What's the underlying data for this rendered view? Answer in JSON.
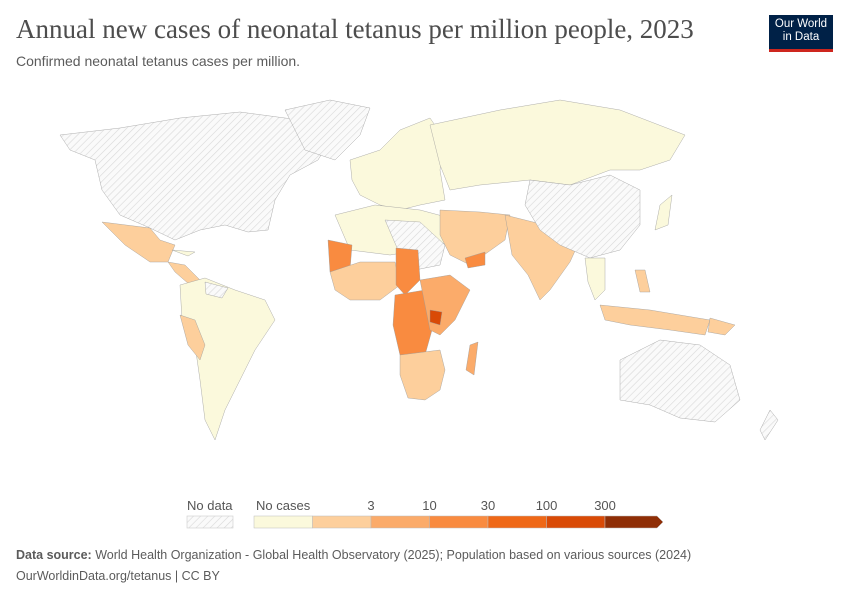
{
  "header": {
    "title": "Annual new cases of neonatal tetanus per million people, 2023",
    "subtitle": "Confirmed neonatal tetanus cases per million.",
    "logo": "Our World in Data"
  },
  "legend": {
    "no_data_label": "No data",
    "no_data_color": "#e0e0e0",
    "bins": [
      {
        "label": "No cases",
        "color": "#fbf9dc"
      },
      {
        "label": "",
        "color": "#fdcf9c"
      },
      {
        "label": "3",
        "color": "#fbab6a"
      },
      {
        "label": "10",
        "color": "#f98b40"
      },
      {
        "label": "30",
        "color": "#ef6817"
      },
      {
        "label": "100",
        "color": "#d94a06"
      },
      {
        "label": "300",
        "color": "#8f2e06"
      }
    ]
  },
  "footer": {
    "source_label": "Data source:",
    "source_text": "World Health Organization - Global Health Observatory (2025); Population based on various sources (2024)",
    "link": "OurWorldinData.org/tetanus | CC BY"
  }
}
